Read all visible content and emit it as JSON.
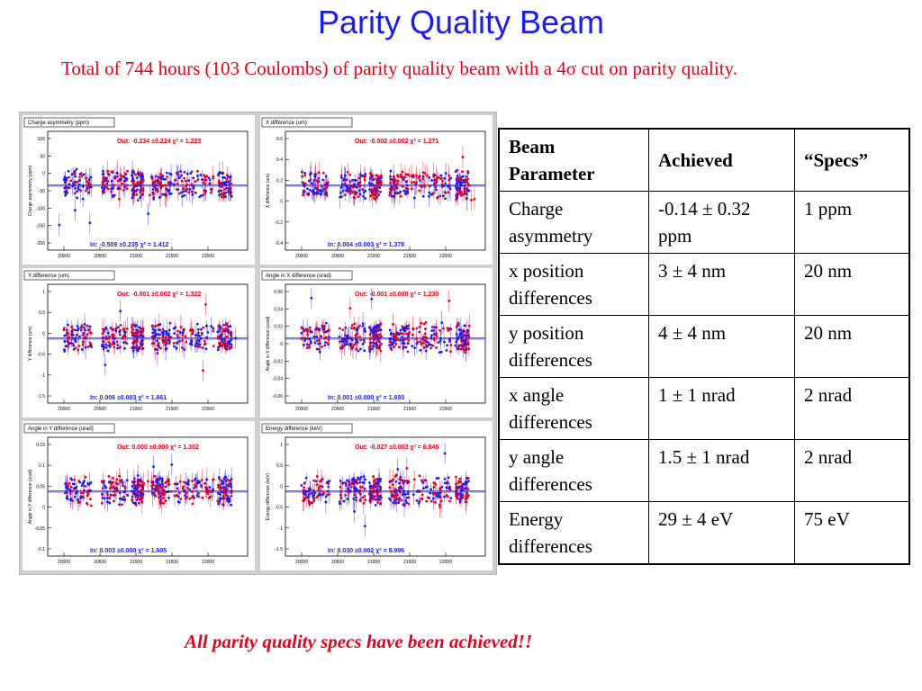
{
  "title": "Parity Quality Beam",
  "subtitle": "Total of 744 hours (103 Coulombs) of parity quality beam with a 4σ cut on parity quality.",
  "plots": [
    {
      "label": "Charge asymmetry (ppm)",
      "ylabel": "Charge asymmetry (ppm)",
      "out": "Out: -0.234 ±0.224 χ² = 1.223",
      "in": "In: -0.509 ±0.235 χ² = 1.412",
      "yticks": [
        "100",
        "50",
        "0",
        "-50",
        "-100",
        "-150",
        "-200"
      ],
      "xticks": [
        "20000",
        "20500",
        "21000",
        "21500",
        "22000"
      ]
    },
    {
      "label": "X difference (um)",
      "ylabel": "X difference (um)",
      "out": "Out: -0.002 ±0.002 χ² = 1.271",
      "in": "In: 0.004 ±0.003 χ² = 1.378",
      "yticks": [
        "0.6",
        "0.4",
        "0.2",
        "0",
        "-0.2",
        "-0.4"
      ],
      "xticks": [
        "20000",
        "20500",
        "21000",
        "21500",
        "22000"
      ]
    },
    {
      "label": "Y difference (um)",
      "ylabel": "Y difference (um)",
      "out": "Out: -0.001 ±0.002 χ² = 1.322",
      "in": "In: 0.006 ±0.003 χ² = 1.661",
      "yticks": [
        "1",
        "0.5",
        "0",
        "-0.5",
        "-1",
        "-1.5"
      ],
      "xticks": [
        "20000",
        "20500",
        "21000",
        "21500",
        "22000"
      ]
    },
    {
      "label": "Angle in X difference (urad)",
      "ylabel": "Angle in X difference (urad)",
      "out": "Out: -0.001 ±0.000 χ² = 1.230",
      "in": "In: 0.001 ±0.000 χ² = 1.693",
      "yticks": [
        "0.06",
        "0.04",
        "0.02",
        "0",
        "-0.02",
        "-0.04",
        "-0.06"
      ],
      "xticks": [
        "20000",
        "20500",
        "21000",
        "21500",
        "22000"
      ]
    },
    {
      "label": "Angle in Y difference (urad)",
      "ylabel": "Angle in Y difference (urad)",
      "out": "Out: 0.000 ±0.000 χ² = 1.302",
      "in": "In: 0.003 ±0.000 χ² = 1.605",
      "yticks": [
        "0.15",
        "0.1",
        "0.05",
        "0",
        "-0.05",
        "-0.1"
      ],
      "xticks": [
        "20000",
        "20500",
        "21000",
        "21500",
        "22000"
      ]
    },
    {
      "label": "Energy difference (keV)",
      "ylabel": "Energy difference (keV)",
      "out": "Out: -0.027 ±0.003 χ² = 6.845",
      "in": "In: 0.030 ±0.002 χ² = 8.996",
      "yticks": [
        "1",
        "0.5",
        "0",
        "-0.5",
        "-1",
        "-1.5"
      ],
      "xticks": [
        "20000",
        "20500",
        "21000",
        "21500",
        "22000"
      ]
    }
  ],
  "colors": {
    "out": "#e8001c",
    "in": "#1a1aff",
    "title": "#1a1aff"
  },
  "table": {
    "headers": [
      "Beam Parameter",
      "Achieved",
      "“Specs”"
    ],
    "rows": [
      [
        "Charge asymmetry",
        "-0.14 ± 0.32 ppm",
        "1 ppm"
      ],
      [
        "x position differences",
        "3 ± 4 nm",
        "20 nm"
      ],
      [
        "y position differences",
        "4 ± 4 nm",
        "20 nm"
      ],
      [
        "x angle differences",
        "1 ± 1 nrad",
        "2 nrad"
      ],
      [
        "y angle differences",
        "1.5 ± 1 nrad",
        "2 nrad"
      ],
      [
        "Energy differences",
        "29 ± 4 eV",
        "75 eV"
      ]
    ]
  },
  "footer": "All parity quality specs have been achieved!!"
}
